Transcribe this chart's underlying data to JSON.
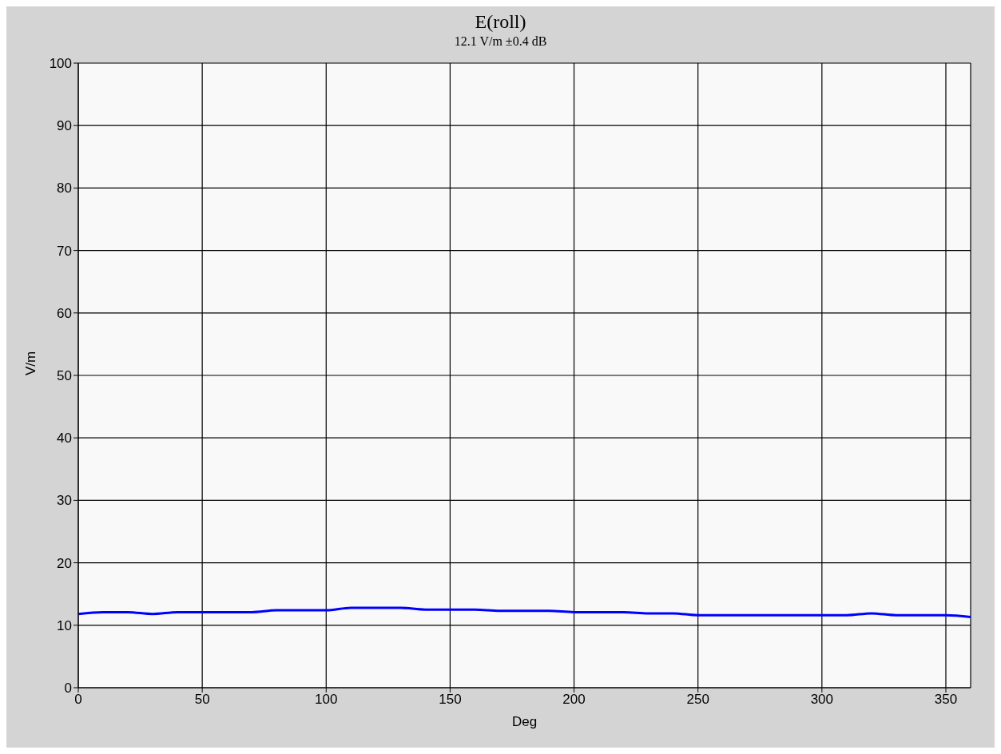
{
  "chart_data": {
    "type": "line",
    "title": "E(roll)",
    "subtitle": "12.1 V/m ±0.4 dB",
    "xlabel": "Deg",
    "ylabel": "V/m",
    "x": [
      0,
      10,
      20,
      30,
      40,
      50,
      60,
      70,
      80,
      90,
      100,
      110,
      120,
      130,
      140,
      150,
      160,
      170,
      180,
      190,
      200,
      210,
      220,
      230,
      240,
      250,
      260,
      270,
      280,
      290,
      300,
      310,
      320,
      330,
      340,
      350,
      360
    ],
    "series": [
      {
        "color": "#0000ff",
        "values": [
          11.8,
          12.1,
          12.1,
          11.8,
          12.1,
          12.1,
          12.1,
          12.1,
          12.4,
          12.4,
          12.4,
          12.8,
          12.8,
          12.8,
          12.5,
          12.5,
          12.5,
          12.3,
          12.3,
          12.3,
          12.1,
          12.1,
          12.1,
          11.9,
          11.9,
          11.6,
          11.6,
          11.6,
          11.6,
          11.6,
          11.6,
          11.6,
          11.9,
          11.6,
          11.6,
          11.6,
          11.3
        ]
      }
    ],
    "xlim": [
      0,
      360
    ],
    "xticks": [
      0,
      50,
      100,
      150,
      200,
      250,
      300,
      350
    ],
    "ylim": [
      0,
      100
    ],
    "yticks": [
      0,
      10,
      20,
      30,
      40,
      50,
      60,
      70,
      80,
      90,
      100
    ],
    "grid": true,
    "marker": "none",
    "line_style": "solid"
  }
}
